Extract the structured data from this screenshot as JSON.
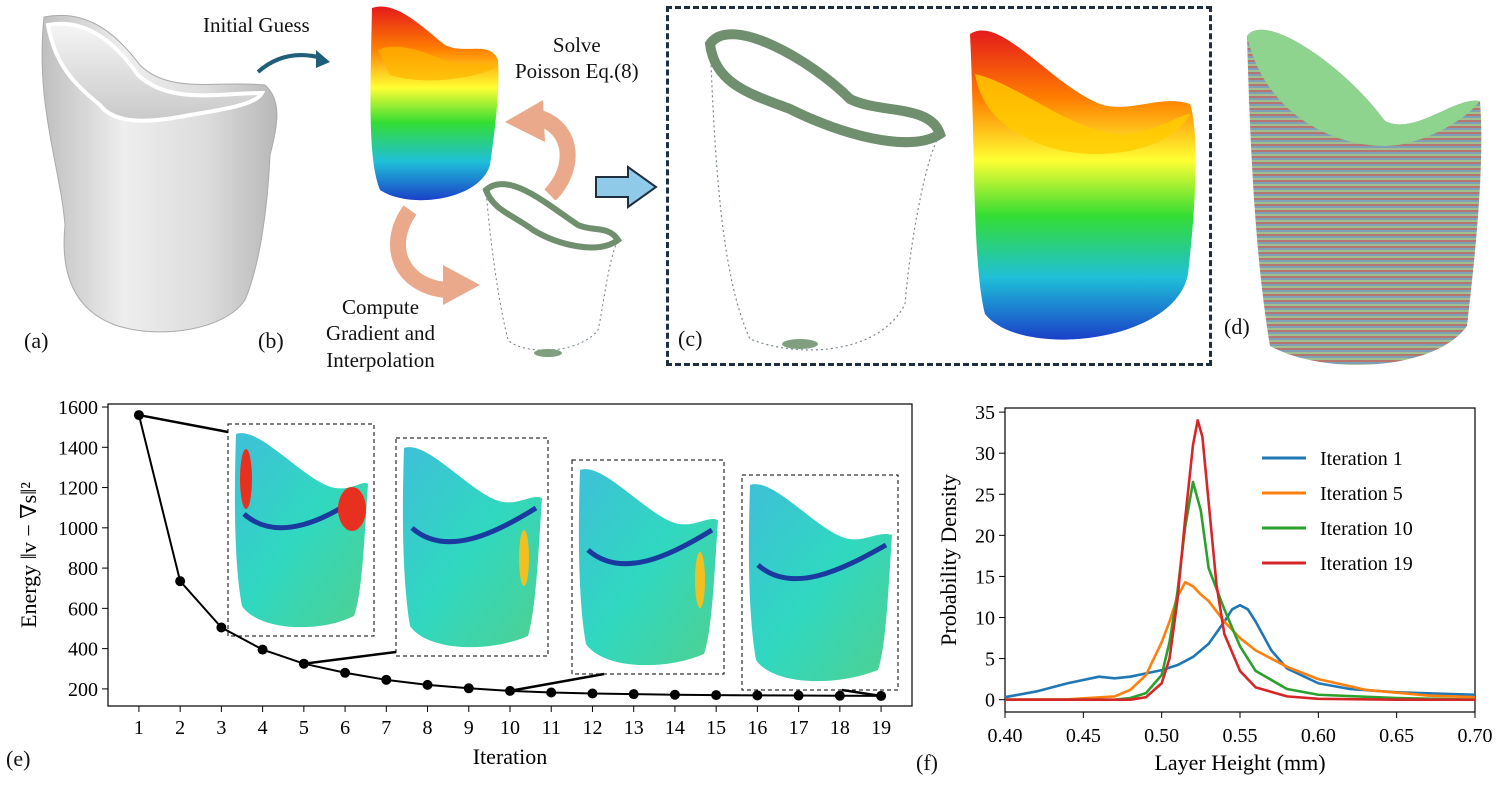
{
  "panels": {
    "a": {
      "label": "(a)"
    },
    "b": {
      "label": "(b)",
      "initial_guess": "Initial Guess",
      "solve_line1": "Solve",
      "solve_line2": "Poisson Eq.(8)",
      "compute_line1": "Compute",
      "compute_line2": "Gradient and",
      "compute_line3": "Interpolation"
    },
    "c": {
      "label": "(c)"
    },
    "d": {
      "label": "(d)"
    },
    "e": {
      "label": "(e)"
    },
    "f": {
      "label": "(f)"
    }
  },
  "colors": {
    "curve_e": "#000000",
    "box_c": "#1f2f3f",
    "arrow_b": "#1f5f7a",
    "cycle_arrow": "#eaa98a",
    "big_arrow": "#8fcbe8"
  },
  "chart_data": [
    {
      "type": "line",
      "id": "e",
      "title": "",
      "xlabel": "Iteration",
      "ylabel": "Energy ‖v − ∇s‖²",
      "x": [
        1,
        2,
        3,
        4,
        5,
        6,
        7,
        8,
        9,
        10,
        11,
        12,
        13,
        14,
        15,
        16,
        17,
        18,
        19
      ],
      "series": [
        {
          "name": "Energy",
          "values": [
            1560,
            735,
            505,
            395,
            325,
            280,
            245,
            220,
            203,
            190,
            182,
            177,
            174,
            171,
            169,
            168,
            167,
            166,
            165
          ]
        }
      ],
      "xlim": [
        0.25,
        19.75
      ],
      "ylim": [
        115,
        1615
      ],
      "yticks": [
        200,
        400,
        600,
        800,
        1000,
        1200,
        1400,
        1600
      ],
      "xticks": [
        1,
        2,
        3,
        4,
        5,
        6,
        7,
        8,
        9,
        10,
        11,
        12,
        13,
        14,
        15,
        16,
        17,
        18,
        19
      ],
      "insets_at_iterations": [
        1,
        5,
        10,
        19
      ]
    },
    {
      "type": "line",
      "id": "f",
      "title": "",
      "xlabel": "Layer Height (mm)",
      "ylabel": "Probability Density",
      "xlim": [
        0.4,
        0.7
      ],
      "ylim": [
        -1.5,
        35.5
      ],
      "xticks": [
        0.4,
        0.45,
        0.5,
        0.55,
        0.6,
        0.65,
        0.7
      ],
      "xtick_labels": [
        "0.40",
        "0.45",
        "0.50",
        "0.55",
        "0.60",
        "0.65",
        "0.70"
      ],
      "yticks": [
        0,
        5,
        10,
        15,
        20,
        25,
        30,
        35
      ],
      "legend_position": "top-right",
      "series": [
        {
          "name": "Iteration 1",
          "color": "#1f77b4",
          "x": [
            0.4,
            0.42,
            0.44,
            0.46,
            0.47,
            0.48,
            0.49,
            0.5,
            0.51,
            0.52,
            0.53,
            0.54,
            0.545,
            0.55,
            0.555,
            0.56,
            0.57,
            0.58,
            0.6,
            0.62,
            0.65,
            0.7
          ],
          "y": [
            0.3,
            1.0,
            2.0,
            2.8,
            2.6,
            2.8,
            3.2,
            3.6,
            4.2,
            5.2,
            6.8,
            9.5,
            11.0,
            11.5,
            11.0,
            9.5,
            6.0,
            3.8,
            2.0,
            1.3,
            0.9,
            0.6
          ]
        },
        {
          "name": "Iteration 5",
          "color": "#ff7f0e",
          "x": [
            0.4,
            0.44,
            0.47,
            0.48,
            0.49,
            0.5,
            0.505,
            0.51,
            0.515,
            0.52,
            0.525,
            0.53,
            0.54,
            0.55,
            0.56,
            0.58,
            0.6,
            0.63,
            0.67,
            0.7
          ],
          "y": [
            0,
            0.05,
            0.4,
            1.2,
            3.0,
            7.0,
            9.5,
            12.5,
            14.3,
            13.8,
            12.8,
            12.0,
            9.5,
            7.5,
            6.0,
            4.0,
            2.5,
            1.2,
            0.5,
            0.3
          ]
        },
        {
          "name": "Iteration 10",
          "color": "#2ca02c",
          "x": [
            0.4,
            0.47,
            0.48,
            0.49,
            0.5,
            0.505,
            0.51,
            0.515,
            0.52,
            0.525,
            0.53,
            0.54,
            0.55,
            0.56,
            0.58,
            0.6,
            0.65,
            0.7
          ],
          "y": [
            0,
            0,
            0.2,
            0.8,
            3.0,
            7.0,
            13.0,
            21.0,
            26.5,
            23.0,
            16.0,
            11.0,
            6.5,
            3.5,
            1.3,
            0.6,
            0.2,
            0
          ],
          "_": "peak ~26.5 at 0.52"
        },
        {
          "name": "Iteration 19",
          "color": "#d62728",
          "x": [
            0.4,
            0.48,
            0.49,
            0.5,
            0.505,
            0.51,
            0.515,
            0.52,
            0.523,
            0.526,
            0.53,
            0.535,
            0.54,
            0.55,
            0.56,
            0.58,
            0.6,
            0.65,
            0.7
          ],
          "y": [
            0,
            0,
            0.3,
            2.0,
            5.0,
            12.0,
            22.0,
            31.0,
            34.0,
            32.0,
            24.0,
            14.0,
            8.0,
            3.5,
            1.5,
            0.4,
            0.1,
            0,
            0
          ]
        }
      ]
    }
  ]
}
